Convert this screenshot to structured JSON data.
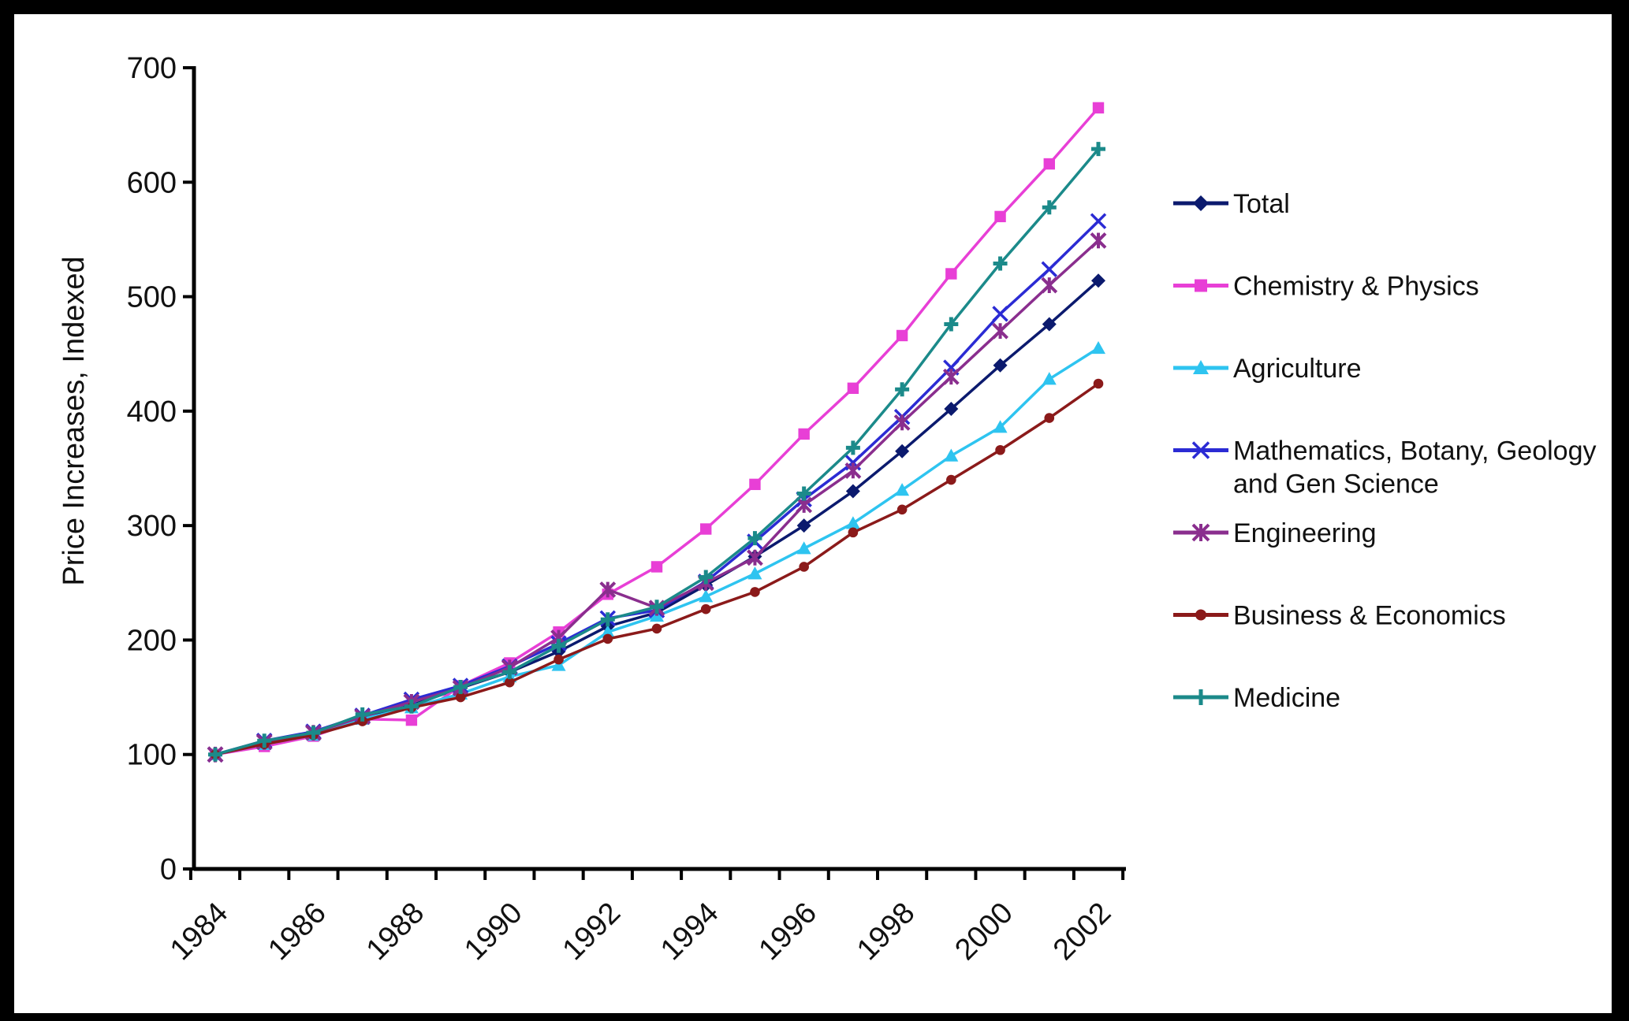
{
  "chart_data": {
    "type": "line",
    "title": "",
    "xlabel": "",
    "ylabel": "Price Increases, Indexed",
    "ylim": [
      0,
      700
    ],
    "yticks": [
      0,
      100,
      200,
      300,
      400,
      500,
      600,
      700
    ],
    "x": [
      1984,
      1985,
      1986,
      1987,
      1988,
      1989,
      1990,
      1991,
      1992,
      1993,
      1994,
      1995,
      1996,
      1997,
      1998,
      1999,
      2000,
      2001,
      2002
    ],
    "xtick_labels": [
      "1984",
      "1986",
      "1988",
      "1990",
      "1992",
      "1994",
      "1996",
      "1998",
      "2000",
      "2002"
    ],
    "grid": false,
    "legend_position": "right",
    "series": [
      {
        "name": "Total",
        "color": "#0b1a6e",
        "marker": "diamond",
        "values": [
          100,
          110,
          118,
          132,
          143,
          158,
          172,
          190,
          212,
          224,
          248,
          273,
          300,
          330,
          365,
          402,
          440,
          476,
          514
        ]
      },
      {
        "name": "Chemistry & Physics",
        "color": "#e83fd6",
        "marker": "square",
        "values": [
          100,
          107,
          116,
          131,
          130,
          160,
          180,
          207,
          240,
          264,
          297,
          336,
          380,
          420,
          466,
          520,
          570,
          616,
          665
        ]
      },
      {
        "name": "Agriculture",
        "color": "#2ec4f0",
        "marker": "triangle",
        "values": [
          100,
          109,
          117,
          131,
          141,
          153,
          168,
          178,
          207,
          221,
          238,
          258,
          280,
          302,
          331,
          361,
          386,
          428,
          455
        ]
      },
      {
        "name": "Mathematics, Botany, Geology and Gen Science",
        "color": "#2b2bd4",
        "marker": "x",
        "values": [
          100,
          112,
          120,
          134,
          148,
          160,
          177,
          197,
          219,
          226,
          251,
          286,
          323,
          355,
          395,
          438,
          485,
          524,
          566
        ]
      },
      {
        "name": "Engineering",
        "color": "#8a2e8e",
        "marker": "star",
        "values": [
          100,
          111,
          119,
          133,
          146,
          158,
          176,
          202,
          244,
          228,
          250,
          272,
          318,
          348,
          390,
          430,
          470,
          510,
          549
        ]
      },
      {
        "name": "Business & Economics",
        "color": "#8b1a1a",
        "marker": "circle",
        "values": [
          100,
          109,
          117,
          129,
          141,
          150,
          163,
          183,
          201,
          210,
          227,
          242,
          264,
          294,
          314,
          340,
          366,
          394,
          424
        ]
      },
      {
        "name": "Medicine",
        "color": "#1b8a8a",
        "marker": "plus",
        "values": [
          100,
          112,
          119,
          135,
          142,
          159,
          172,
          195,
          218,
          229,
          255,
          289,
          328,
          368,
          419,
          476,
          529,
          578,
          629
        ]
      }
    ]
  }
}
